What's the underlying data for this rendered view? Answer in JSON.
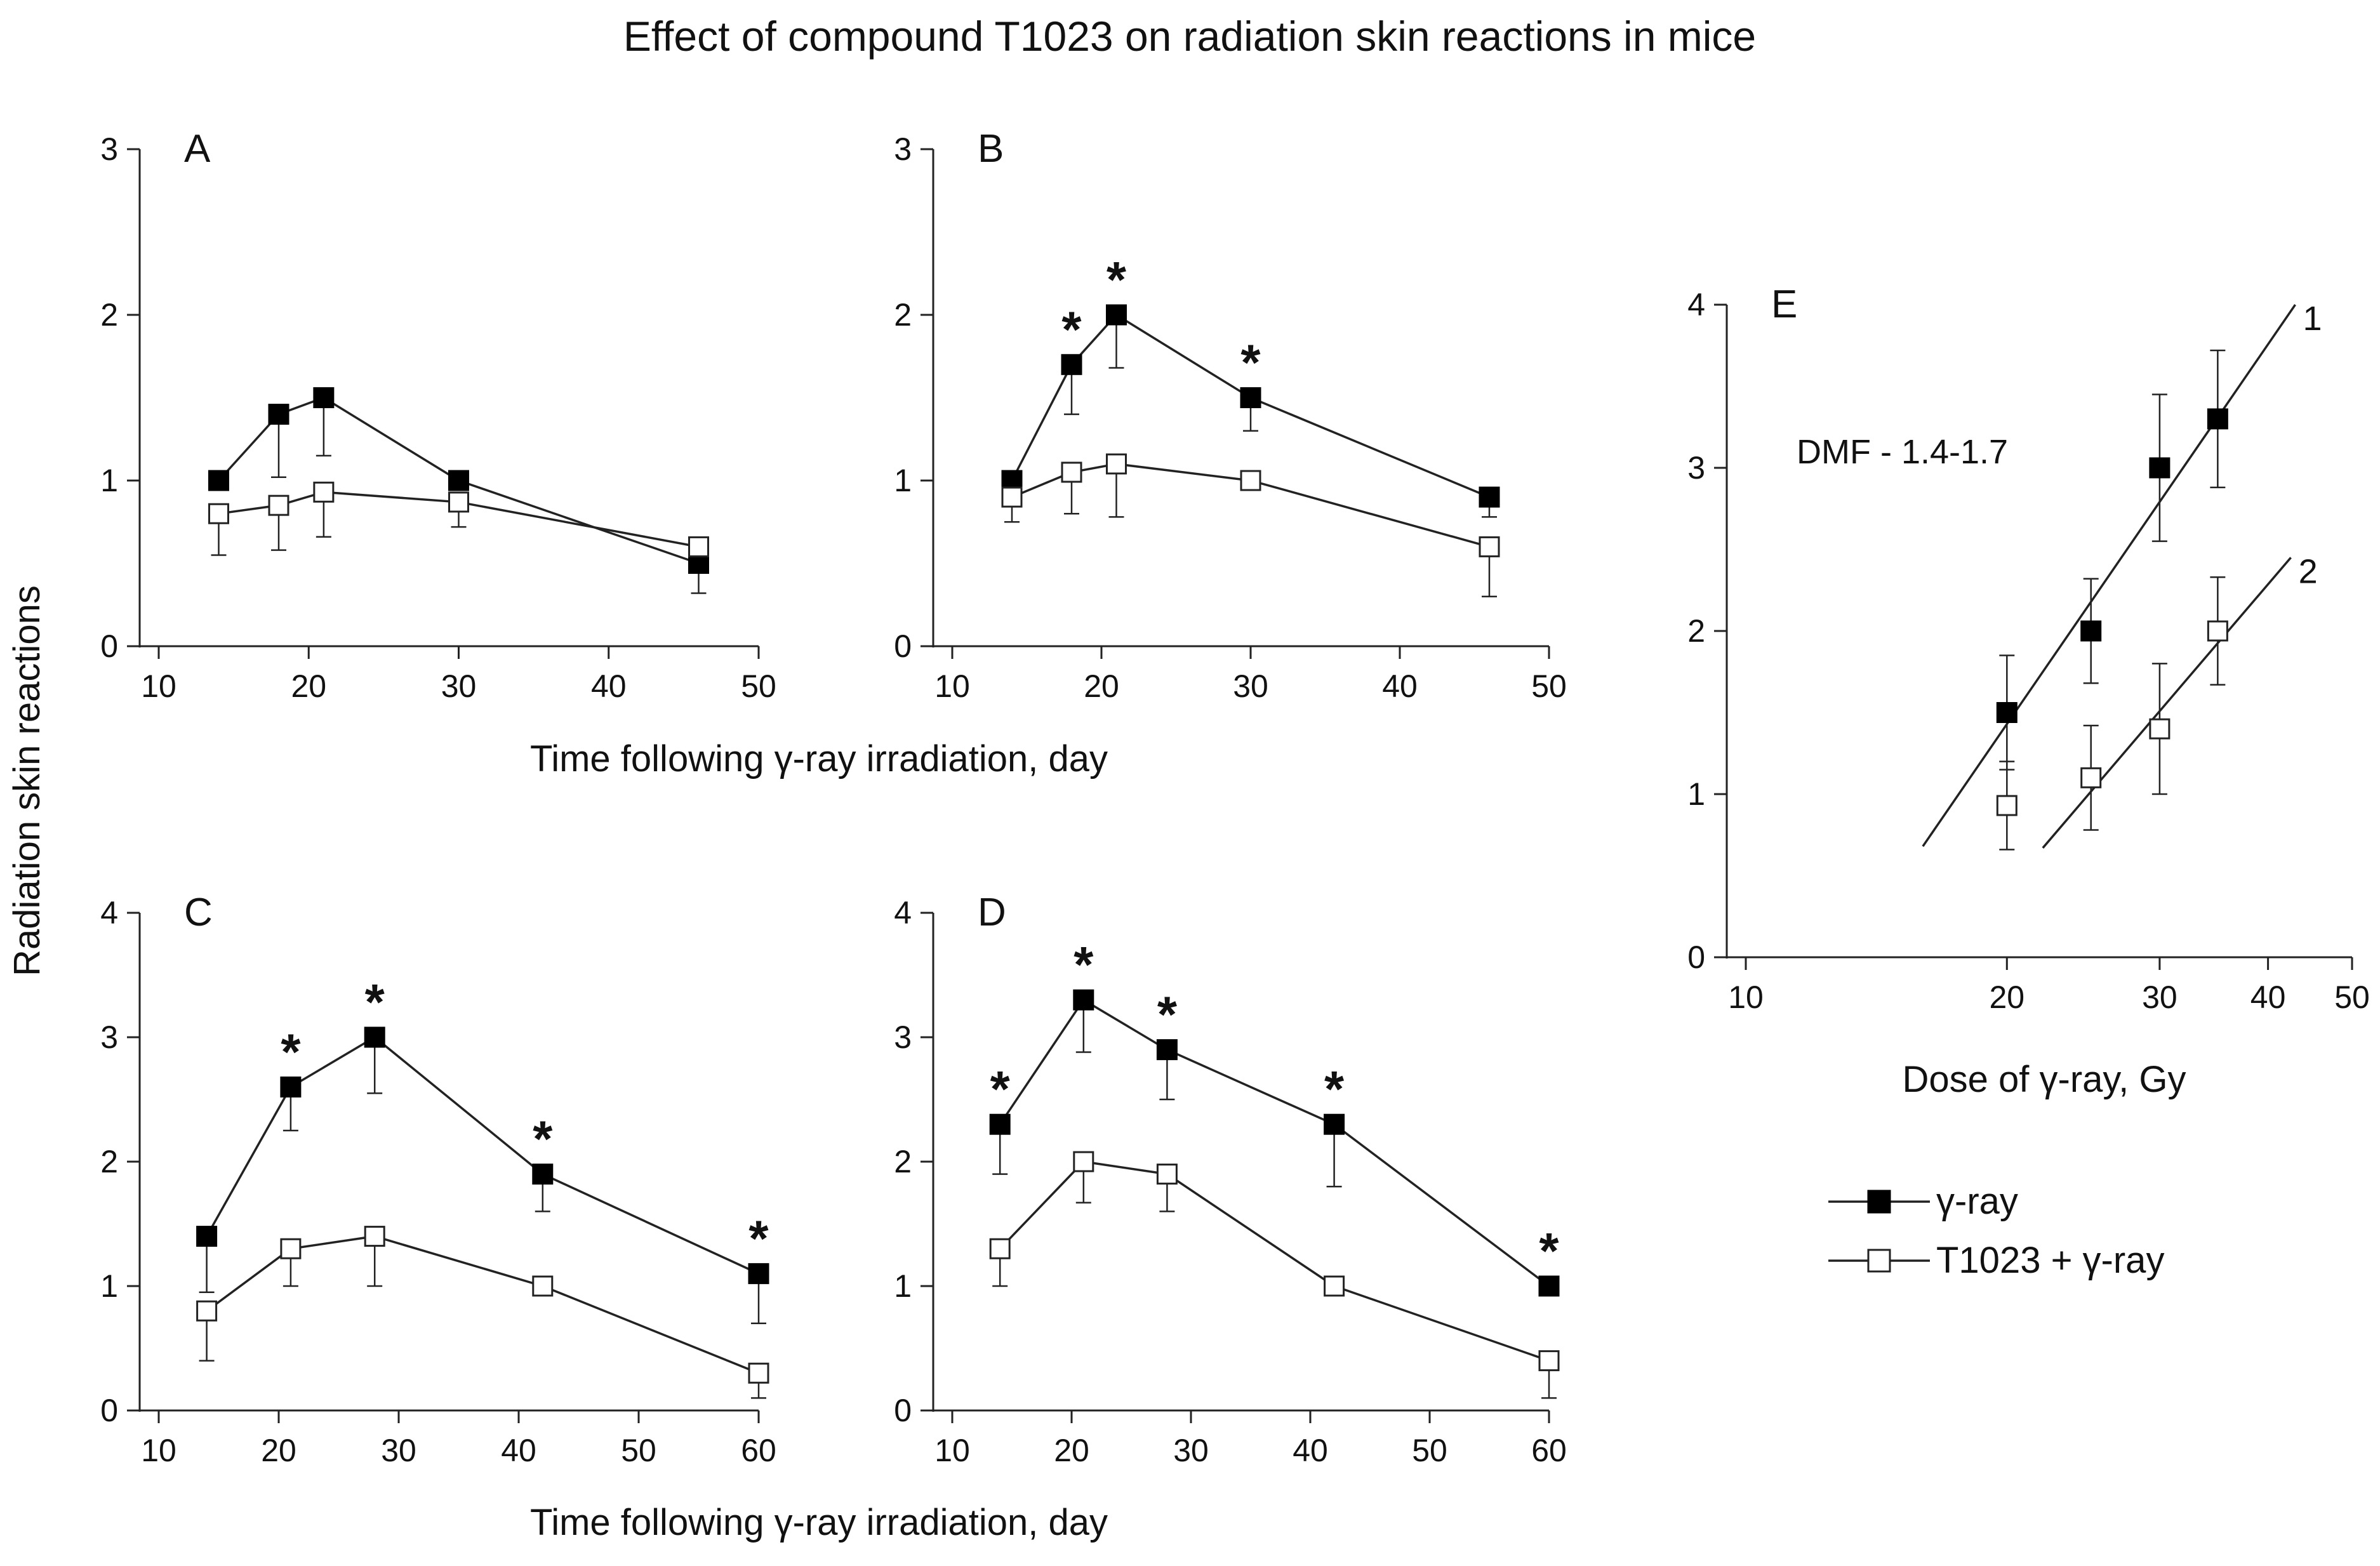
{
  "figure_title": "Effect of compound T1023 on radiation skin reactions in mice",
  "y_axis_title": "Radiation skin reactions",
  "x_axis_title_top": "Time following γ-ray irradiation, day",
  "x_axis_title_bottom": "Time following γ-ray irradiation, day",
  "x_axis_title_e": "Dose of γ-ray, Gy",
  "legend": {
    "filled": "γ-ray",
    "open": "T1023 + γ-ray"
  },
  "colors": {
    "ink": "#111111",
    "open_fill": "#ffffff",
    "filled_fill": "#000000"
  },
  "chart_data": [
    {
      "panel": "A",
      "type": "line",
      "xlim": [
        10,
        50
      ],
      "xticks": [
        10,
        20,
        30,
        40,
        50
      ],
      "ylim": [
        0,
        3
      ],
      "yticks": [
        0,
        1,
        2,
        3
      ],
      "series": [
        {
          "name": "γ-ray",
          "marker": "filled",
          "x": [
            14,
            18,
            21,
            30,
            46
          ],
          "values": [
            1.0,
            1.4,
            1.5,
            1.0,
            0.5
          ],
          "err": [
            0,
            0.38,
            0.35,
            0,
            0.18
          ],
          "err_dir": "down"
        },
        {
          "name": "T1023 + γ-ray",
          "marker": "open",
          "x": [
            14,
            18,
            21,
            30,
            46
          ],
          "values": [
            0.8,
            0.85,
            0.93,
            0.87,
            0.6
          ],
          "err": [
            0.25,
            0.27,
            0.27,
            0.15,
            0
          ],
          "err_dir": "down"
        }
      ],
      "significance_at": []
    },
    {
      "panel": "B",
      "type": "line",
      "xlim": [
        10,
        50
      ],
      "xticks": [
        10,
        20,
        30,
        40,
        50
      ],
      "ylim": [
        0,
        3
      ],
      "yticks": [
        0,
        1,
        2,
        3
      ],
      "series": [
        {
          "name": "γ-ray",
          "marker": "filled",
          "x": [
            14,
            18,
            21,
            30,
            46
          ],
          "values": [
            1.0,
            1.7,
            2.0,
            1.5,
            0.9
          ],
          "err": [
            0,
            0.3,
            0.32,
            0.2,
            0.12
          ],
          "err_dir": "down"
        },
        {
          "name": "T1023 + γ-ray",
          "marker": "open",
          "x": [
            14,
            18,
            21,
            30,
            46
          ],
          "values": [
            0.9,
            1.05,
            1.1,
            1.0,
            0.6
          ],
          "err": [
            0.15,
            0.25,
            0.32,
            0,
            0.3
          ],
          "err_dir": "down"
        }
      ],
      "significance_at": [
        18,
        21,
        30
      ]
    },
    {
      "panel": "C",
      "type": "line",
      "xlim": [
        10,
        60
      ],
      "xticks": [
        10,
        20,
        30,
        40,
        50,
        60
      ],
      "ylim": [
        0,
        4
      ],
      "yticks": [
        0,
        1,
        2,
        3,
        4
      ],
      "series": [
        {
          "name": "γ-ray",
          "marker": "filled",
          "x": [
            14,
            21,
            28,
            42,
            60
          ],
          "values": [
            1.4,
            2.6,
            3.0,
            1.9,
            1.1
          ],
          "err": [
            0.45,
            0.35,
            0.45,
            0.3,
            0.4
          ],
          "err_dir": "down"
        },
        {
          "name": "T1023 + γ-ray",
          "marker": "open",
          "x": [
            14,
            21,
            28,
            42,
            60
          ],
          "values": [
            0.8,
            1.3,
            1.4,
            1.0,
            0.3
          ],
          "err": [
            0.4,
            0.3,
            0.4,
            0,
            0.2
          ],
          "err_dir": "down"
        }
      ],
      "significance_at": [
        21,
        28,
        42,
        60
      ]
    },
    {
      "panel": "D",
      "type": "line",
      "xlim": [
        10,
        60
      ],
      "xticks": [
        10,
        20,
        30,
        40,
        50,
        60
      ],
      "ylim": [
        0,
        4
      ],
      "yticks": [
        0,
        1,
        2,
        3,
        4
      ],
      "series": [
        {
          "name": "γ-ray",
          "marker": "filled",
          "x": [
            14,
            21,
            28,
            42,
            60
          ],
          "values": [
            2.3,
            3.3,
            2.9,
            2.3,
            1.0
          ],
          "err": [
            0.4,
            0.42,
            0.4,
            0.5,
            0
          ],
          "err_dir": "down"
        },
        {
          "name": "T1023 + γ-ray",
          "marker": "open",
          "x": [
            14,
            21,
            28,
            42,
            60
          ],
          "values": [
            1.3,
            2.0,
            1.9,
            1.0,
            0.4
          ],
          "err": [
            0.3,
            0.33,
            0.3,
            0,
            0.3
          ],
          "err_dir": "down"
        }
      ],
      "significance_at": [
        14,
        21,
        28,
        42,
        60
      ]
    },
    {
      "panel": "E",
      "type": "scatter",
      "x_scale": "log",
      "xlim": [
        10,
        50
      ],
      "xticks": [
        10,
        20,
        30,
        40,
        50
      ],
      "ylim": [
        0,
        4
      ],
      "yticks": [
        0,
        1,
        2,
        3,
        4
      ],
      "annotation": "DMF - 1.4-1.7",
      "series": [
        {
          "name": "γ-ray",
          "marker": "filled",
          "line_label": "1",
          "x": [
            20,
            25,
            30,
            35
          ],
          "values": [
            1.5,
            2.0,
            3.0,
            3.3
          ],
          "err": [
            0.35,
            0.32,
            0.45,
            0.42
          ],
          "err_dir": "both",
          "fit": {
            "x": [
              16,
              43
            ],
            "y": [
              0.68,
              4.0
            ]
          }
        },
        {
          "name": "T1023 + γ-ray",
          "marker": "open",
          "line_label": "2",
          "x": [
            20,
            25,
            30,
            35
          ],
          "values": [
            0.93,
            1.1,
            1.4,
            2.0
          ],
          "err": [
            0.27,
            0.32,
            0.4,
            0.33
          ],
          "err_dir": "both",
          "fit": {
            "x": [
              22,
              42.5
            ],
            "y": [
              0.67,
              2.45
            ]
          }
        }
      ],
      "significance_at": []
    }
  ]
}
